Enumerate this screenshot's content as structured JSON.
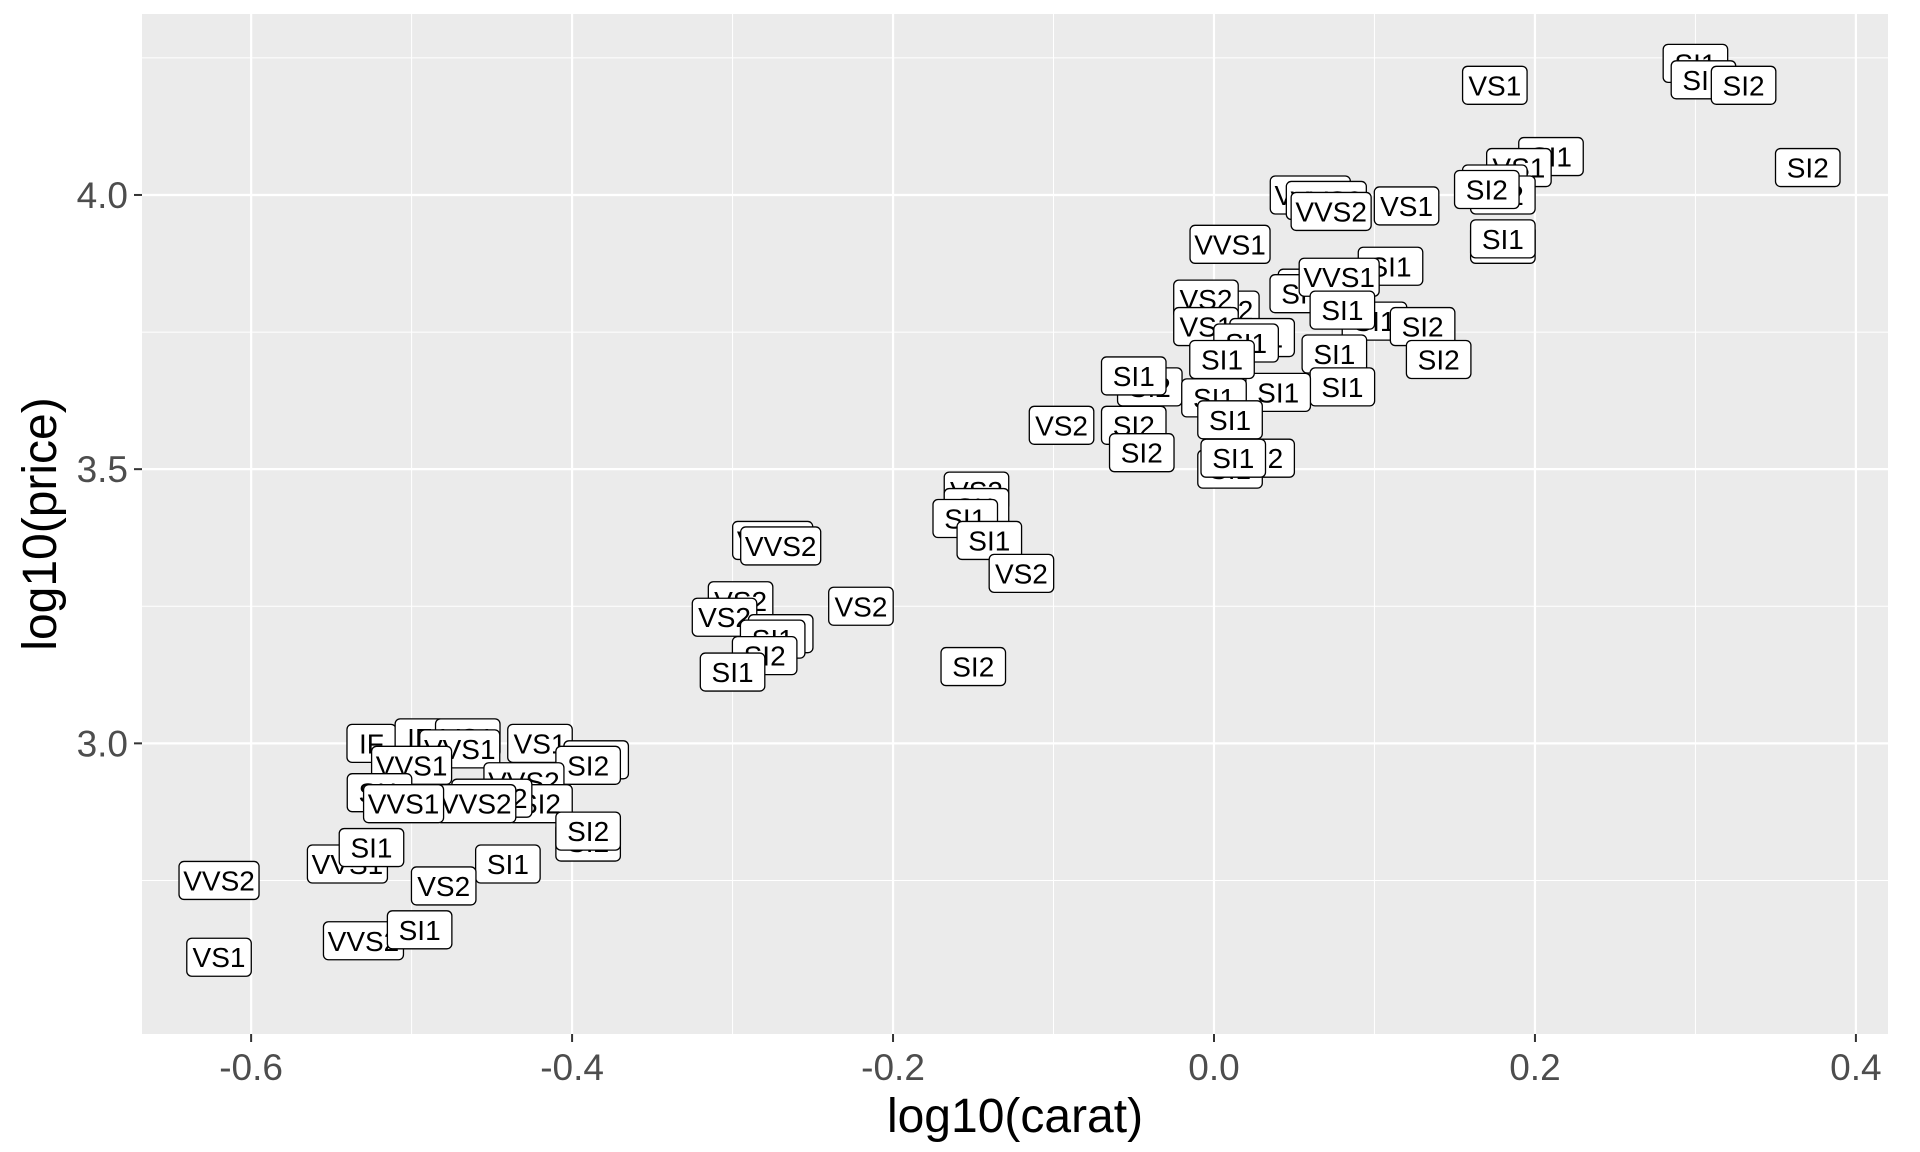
{
  "chart_data": {
    "type": "scatter",
    "title": "",
    "xlabel": "log10(carat)",
    "ylabel": "log10(price)",
    "xlim": [
      -0.668,
      0.42
    ],
    "ylim": [
      2.47,
      4.33
    ],
    "x_ticks": [
      -0.6,
      -0.4,
      -0.2,
      0.0,
      0.2,
      0.4
    ],
    "x_tick_labels": [
      "-0.6",
      "-0.4",
      "-0.2",
      "0.0",
      "0.2",
      "0.4"
    ],
    "y_ticks": [
      3.0,
      3.5,
      4.0
    ],
    "y_tick_labels": [
      "3.0",
      "3.5",
      "4.0"
    ],
    "grid": true,
    "legend": "none",
    "colors": {
      "panel": "#ebebeb",
      "grid": "#ffffff",
      "label_fill": "#ffffff",
      "label_border": "#000000"
    },
    "points": [
      {
        "x": 0.3,
        "y": 4.24,
        "label": "SI1"
      },
      {
        "x": 0.305,
        "y": 4.21,
        "label": "SI1"
      },
      {
        "x": 0.33,
        "y": 4.2,
        "label": "SI2"
      },
      {
        "x": 0.175,
        "y": 4.2,
        "label": "VS1"
      },
      {
        "x": 0.21,
        "y": 4.07,
        "label": "SI1"
      },
      {
        "x": 0.19,
        "y": 4.05,
        "label": "VS1"
      },
      {
        "x": 0.37,
        "y": 4.05,
        "label": "SI2"
      },
      {
        "x": 0.175,
        "y": 4.02,
        "label": "SI2"
      },
      {
        "x": 0.18,
        "y": 4.0,
        "label": "SI2"
      },
      {
        "x": 0.17,
        "y": 4.01,
        "label": "SI2"
      },
      {
        "x": 0.06,
        "y": 4.0,
        "label": "VVS2"
      },
      {
        "x": 0.07,
        "y": 3.99,
        "label": "VVS2"
      },
      {
        "x": 0.12,
        "y": 3.98,
        "label": "VS1"
      },
      {
        "x": 0.073,
        "y": 3.97,
        "label": "VVS2"
      },
      {
        "x": 0.01,
        "y": 3.91,
        "label": "VVS1"
      },
      {
        "x": 0.18,
        "y": 3.91,
        "label": "SI2"
      },
      {
        "x": 0.18,
        "y": 3.92,
        "label": "SI1"
      },
      {
        "x": 0.11,
        "y": 3.87,
        "label": "SI1"
      },
      {
        "x": 0.065,
        "y": 3.83,
        "label": "VVS1"
      },
      {
        "x": 0.055,
        "y": 3.82,
        "label": "SI1"
      },
      {
        "x": 0.078,
        "y": 3.85,
        "label": "VVS1"
      },
      {
        "x": 0.1,
        "y": 3.77,
        "label": "SI1"
      },
      {
        "x": 0.08,
        "y": 3.79,
        "label": "SI1"
      },
      {
        "x": 0.13,
        "y": 3.76,
        "label": "SI2"
      },
      {
        "x": 0.14,
        "y": 3.7,
        "label": "SI2"
      },
      {
        "x": 0.075,
        "y": 3.71,
        "label": "SI1"
      },
      {
        "x": 0.08,
        "y": 3.65,
        "label": "SI1"
      },
      {
        "x": 0.04,
        "y": 3.64,
        "label": "SI1"
      },
      {
        "x": 0.008,
        "y": 3.79,
        "label": "VS2"
      },
      {
        "x": -0.005,
        "y": 3.81,
        "label": "VS2"
      },
      {
        "x": -0.005,
        "y": 3.76,
        "label": "VS1"
      },
      {
        "x": 0.03,
        "y": 3.74,
        "label": "SI1"
      },
      {
        "x": 0.02,
        "y": 3.73,
        "label": "SI1"
      },
      {
        "x": 0.005,
        "y": 3.7,
        "label": "SI1"
      },
      {
        "x": -0.04,
        "y": 3.65,
        "label": "SI2"
      },
      {
        "x": 0.0,
        "y": 3.63,
        "label": "SI1"
      },
      {
        "x": -0.05,
        "y": 3.67,
        "label": "SI1"
      },
      {
        "x": -0.05,
        "y": 3.58,
        "label": "SI2"
      },
      {
        "x": -0.095,
        "y": 3.58,
        "label": "VS2"
      },
      {
        "x": -0.045,
        "y": 3.53,
        "label": "SI2"
      },
      {
        "x": 0.01,
        "y": 3.59,
        "label": "SI1"
      },
      {
        "x": 0.03,
        "y": 3.52,
        "label": "SI2"
      },
      {
        "x": 0.01,
        "y": 3.5,
        "label": "SI1"
      },
      {
        "x": 0.012,
        "y": 3.52,
        "label": "SI1"
      },
      {
        "x": -0.148,
        "y": 3.46,
        "label": "VS2"
      },
      {
        "x": -0.148,
        "y": 3.43,
        "label": "SI1"
      },
      {
        "x": -0.155,
        "y": 3.41,
        "label": "SI1"
      },
      {
        "x": -0.14,
        "y": 3.37,
        "label": "SI1"
      },
      {
        "x": -0.12,
        "y": 3.31,
        "label": "VS2"
      },
      {
        "x": -0.15,
        "y": 3.14,
        "label": "SI2"
      },
      {
        "x": -0.275,
        "y": 3.37,
        "label": "VVS2"
      },
      {
        "x": -0.27,
        "y": 3.36,
        "label": "VVS2"
      },
      {
        "x": -0.22,
        "y": 3.25,
        "label": "VS2"
      },
      {
        "x": -0.295,
        "y": 3.26,
        "label": "VS2"
      },
      {
        "x": -0.305,
        "y": 3.23,
        "label": "VS2"
      },
      {
        "x": -0.27,
        "y": 3.2,
        "label": "SI1"
      },
      {
        "x": -0.275,
        "y": 3.19,
        "label": "SI1"
      },
      {
        "x": -0.28,
        "y": 3.16,
        "label": "SI2"
      },
      {
        "x": -0.3,
        "y": 3.13,
        "label": "SI1"
      },
      {
        "x": -0.525,
        "y": 3.0,
        "label": "IF"
      },
      {
        "x": -0.495,
        "y": 3.01,
        "label": "IF"
      },
      {
        "x": -0.465,
        "y": 3.01,
        "label": "VS1"
      },
      {
        "x": -0.47,
        "y": 2.99,
        "label": "VVS1"
      },
      {
        "x": -0.42,
        "y": 3.0,
        "label": "VS1"
      },
      {
        "x": -0.385,
        "y": 2.97,
        "label": "SI2"
      },
      {
        "x": -0.39,
        "y": 2.96,
        "label": "SI2"
      },
      {
        "x": -0.5,
        "y": 2.96,
        "label": "VVS1"
      },
      {
        "x": -0.43,
        "y": 2.93,
        "label": "VVS2"
      },
      {
        "x": -0.42,
        "y": 2.89,
        "label": "SI2"
      },
      {
        "x": -0.45,
        "y": 2.9,
        "label": "VVS2"
      },
      {
        "x": -0.46,
        "y": 2.89,
        "label": "VVS2"
      },
      {
        "x": -0.52,
        "y": 2.91,
        "label": "SI1"
      },
      {
        "x": -0.505,
        "y": 2.89,
        "label": "VVS1"
      },
      {
        "x": -0.39,
        "y": 2.82,
        "label": "SI2"
      },
      {
        "x": -0.39,
        "y": 2.84,
        "label": "SI2"
      },
      {
        "x": -0.54,
        "y": 2.78,
        "label": "VVS1"
      },
      {
        "x": -0.525,
        "y": 2.81,
        "label": "SI1"
      },
      {
        "x": -0.44,
        "y": 2.78,
        "label": "SI1"
      },
      {
        "x": -0.48,
        "y": 2.74,
        "label": "VS2"
      },
      {
        "x": -0.62,
        "y": 2.75,
        "label": "VVS2"
      },
      {
        "x": -0.53,
        "y": 2.64,
        "label": "VVS2"
      },
      {
        "x": -0.495,
        "y": 2.66,
        "label": "SI1"
      },
      {
        "x": -0.62,
        "y": 2.61,
        "label": "VS1"
      }
    ]
  }
}
